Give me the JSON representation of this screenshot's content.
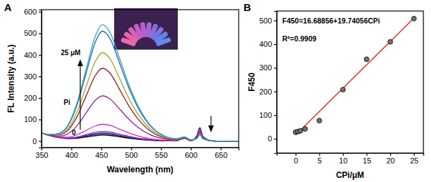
{
  "chart_data": [
    {
      "type": "line",
      "title": "A",
      "x_label": "Wavelength (nm)",
      "y_label": "FL Intensity (a.u.)",
      "x": [
        350,
        365,
        380,
        395,
        410,
        425,
        440,
        452,
        465,
        480,
        495,
        510,
        530,
        550,
        575,
        590,
        595,
        600,
        610,
        615,
        620,
        635,
        650,
        680
      ],
      "xlim": [
        350,
        680
      ],
      "xticks": [
        350,
        400,
        450,
        500,
        550,
        600,
        650
      ],
      "ylim": [
        -30,
        610
      ],
      "yticks": [
        0,
        100,
        200,
        300,
        400,
        500,
        600
      ],
      "annotations": [
        "25 μM",
        "Pi",
        "0"
      ],
      "series": [
        {
          "color": "#000000",
          "values": [
            38,
            25,
            16,
            12,
            13,
            19,
            25,
            28,
            26,
            20,
            14,
            9,
            4,
            2,
            1,
            14,
            6,
            2,
            25,
            62,
            22,
            1,
            0,
            0
          ]
        },
        {
          "color": "#1c1c70",
          "values": [
            38,
            25,
            16,
            12,
            15,
            22,
            30,
            33,
            31,
            24,
            17,
            11,
            5,
            2,
            1,
            14,
            6,
            2,
            24,
            60,
            21,
            1,
            0,
            0
          ]
        },
        {
          "color": "#3a2f9a",
          "values": [
            38,
            25,
            17,
            13,
            17,
            26,
            34,
            38,
            35,
            27,
            19,
            12,
            6,
            2,
            1,
            14,
            6,
            2,
            23,
            58,
            20,
            1,
            0,
            0
          ]
        },
        {
          "color": "#7a2fb0",
          "values": [
            38,
            25,
            17,
            14,
            19,
            30,
            41,
            45,
            42,
            32,
            23,
            14,
            7,
            3,
            1,
            14,
            6,
            2,
            22,
            55,
            19,
            1,
            0,
            0
          ]
        },
        {
          "color": "#d020d0",
          "values": [
            38,
            26,
            18,
            18,
            30,
            50,
            70,
            78,
            73,
            56,
            39,
            25,
            12,
            5,
            2,
            15,
            7,
            2,
            20,
            50,
            18,
            1,
            0,
            0
          ]
        },
        {
          "color": "#8e1f8e",
          "values": [
            38,
            27,
            23,
            35,
            73,
            132,
            189,
            210,
            195,
            151,
            105,
            67,
            32,
            13,
            4,
            16,
            8,
            3,
            18,
            45,
            16,
            1,
            0,
            0
          ]
        },
        {
          "color": "#8b1a1a",
          "values": [
            38,
            28,
            29,
            52,
            116,
            212,
            304,
            338,
            314,
            243,
            169,
            108,
            51,
            20,
            7,
            17,
            9,
            4,
            16,
            40,
            14,
            1,
            0,
            0
          ]
        },
        {
          "color": "#a3a022",
          "values": [
            38,
            29,
            31,
            61,
            139,
            256,
            369,
            410,
            381,
            295,
            205,
            131,
            62,
            25,
            8,
            18,
            10,
            4,
            14,
            36,
            13,
            1,
            0,
            0
          ]
        },
        {
          "color": "#2a55c0",
          "values": [
            38,
            30,
            35,
            74,
            172,
            318,
            459,
            510,
            474,
            367,
            255,
            163,
            77,
            31,
            10,
            19,
            11,
            5,
            13,
            32,
            11,
            1,
            0,
            0
          ]
        },
        {
          "color": "#27a7a7",
          "values": [
            38,
            30,
            37,
            78,
            182,
            337,
            486,
            540,
            502,
            389,
            270,
            173,
            81,
            32,
            11,
            19,
            11,
            5,
            12,
            30,
            11,
            1,
            0,
            0
          ]
        }
      ]
    },
    {
      "type": "scatter",
      "title": "B",
      "x_label": "CPi/μM",
      "y_label": "F450",
      "xlim": [
        -4,
        27
      ],
      "xticks": [
        0,
        5,
        10,
        15,
        20,
        25
      ],
      "ylim": [
        -60,
        540
      ],
      "yticks": [
        0,
        100,
        200,
        300,
        400,
        500
      ],
      "annotations": [
        "F450=16.68856+19.74056CPi",
        "R²=0.9909"
      ],
      "series": [
        {
          "type": "scatter",
          "marker": "circle",
          "color": "#707070",
          "x": [
            0,
            0.5,
            1,
            2,
            5,
            10,
            15,
            20,
            25
          ],
          "values": [
            28,
            31,
            34,
            42,
            77,
            208,
            336,
            410,
            508
          ]
        },
        {
          "type": "line",
          "color": "#e02020",
          "x": [
            0,
            25
          ],
          "values": [
            16.7,
            510.2
          ]
        }
      ]
    }
  ]
}
